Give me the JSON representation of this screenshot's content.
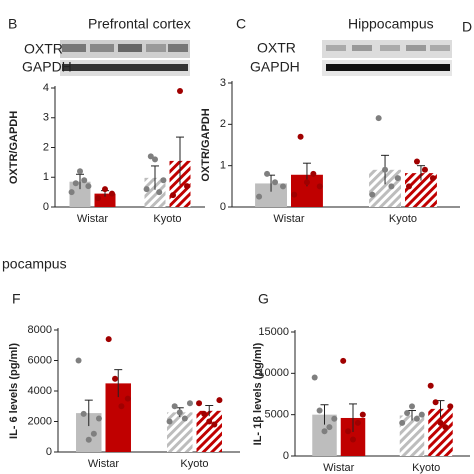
{
  "section_title": "pocampus",
  "cut_panel_label": "D",
  "chart_data": [
    {
      "type": "bar",
      "panel": "B",
      "title": "Prefrontal cortex",
      "blot_labels": [
        "OXTR",
        "GAPDH"
      ],
      "ylabel": "OXTR/GAPDH",
      "categories": [
        "Wistar",
        "Kyoto"
      ],
      "hatched": [
        false,
        true
      ],
      "ylim": [
        0,
        4
      ],
      "yticks": [
        0,
        1,
        2,
        3,
        4
      ],
      "series": [
        {
          "color": "#bdbdbd",
          "point_color": "#7f7f7f",
          "values": [
            0.85,
            0.98
          ],
          "errors": [
            0.25,
            0.4
          ],
          "points": [
            [
              0.5,
              0.8,
              1.2,
              0.9,
              0.7
            ],
            [
              0.6,
              1.7,
              1.6,
              0.5,
              0.9
            ]
          ]
        },
        {
          "color": "#c00000",
          "point_color": "#a00000",
          "values": [
            0.45,
            1.55
          ],
          "errors": [
            0.1,
            0.8
          ],
          "points": [
            [
              0.3,
              0.6,
              0.45
            ],
            [
              0.4,
              3.9,
              0.7
            ]
          ]
        }
      ]
    },
    {
      "type": "bar",
      "panel": "C",
      "title": "Hippocampus",
      "blot_labels": [
        "OXTR",
        "GAPDH"
      ],
      "ylabel": "OXTR/GAPDH",
      "categories": [
        "Wistar",
        "Kyoto"
      ],
      "hatched": [
        false,
        true
      ],
      "ylim": [
        0,
        3
      ],
      "yticks": [
        0,
        1,
        2,
        3
      ],
      "series": [
        {
          "color": "#bdbdbd",
          "point_color": "#7f7f7f",
          "values": [
            0.57,
            0.9
          ],
          "errors": [
            0.2,
            0.35
          ],
          "points": [
            [
              0.25,
              0.8,
              0.6,
              0.5
            ],
            [
              0.3,
              2.15,
              0.9,
              0.5,
              0.7
            ]
          ]
        },
        {
          "color": "#c00000",
          "point_color": "#a00000",
          "values": [
            0.78,
            0.82
          ],
          "errors": [
            0.28,
            0.18
          ],
          "points": [
            [
              0.3,
              1.7,
              0.6,
              0.8,
              0.5
            ],
            [
              0.5,
              1.1,
              0.9,
              0.7
            ]
          ]
        }
      ]
    },
    {
      "type": "bar",
      "panel": "F",
      "ylabel": "IL- 6 levels (pg/ml)",
      "categories": [
        "Wistar",
        "Kyoto"
      ],
      "hatched": [
        false,
        true
      ],
      "ylim": [
        0,
        8000
      ],
      "yticks": [
        0,
        2000,
        4000,
        6000,
        8000
      ],
      "series": [
        {
          "color": "#bdbdbd",
          "point_color": "#7f7f7f",
          "values": [
            2550,
            2600
          ],
          "errors": [
            850,
            300
          ],
          "points": [
            [
              6000,
              2500,
              800,
              1200,
              2200
            ],
            [
              2000,
              3000,
              2600,
              2200,
              3200
            ]
          ]
        },
        {
          "color": "#c00000",
          "point_color": "#a00000",
          "values": [
            4500,
            2700
          ],
          "errors": [
            900,
            350
          ],
          "points": [
            [
              7400,
              4800,
              3000,
              3500
            ],
            [
              3200,
              2500,
              2000,
              1800,
              3400
            ]
          ]
        }
      ]
    },
    {
      "type": "bar",
      "panel": "G",
      "ylabel": "IL- 1β levels (pg/ml)",
      "categories": [
        "Wistar",
        "Kyoto"
      ],
      "hatched": [
        false,
        true
      ],
      "ylim": [
        0,
        15000
      ],
      "yticks": [
        0,
        5000,
        10000,
        15000
      ],
      "series": [
        {
          "color": "#bdbdbd",
          "point_color": "#7f7f7f",
          "values": [
            5000,
            4900
          ],
          "errors": [
            1200,
            600
          ],
          "points": [
            [
              9500,
              5500,
              3000,
              3500,
              4500
            ],
            [
              4000,
              5200,
              6000,
              4500,
              5000
            ]
          ]
        },
        {
          "color": "#c00000",
          "point_color": "#a00000",
          "values": [
            4600,
            5700
          ],
          "errors": [
            1700,
            1000
          ],
          "points": [
            [
              11500,
              3000,
              2000,
              4000,
              5000
            ],
            [
              8500,
              6500,
              4000,
              3500,
              6000
            ]
          ]
        }
      ]
    }
  ]
}
